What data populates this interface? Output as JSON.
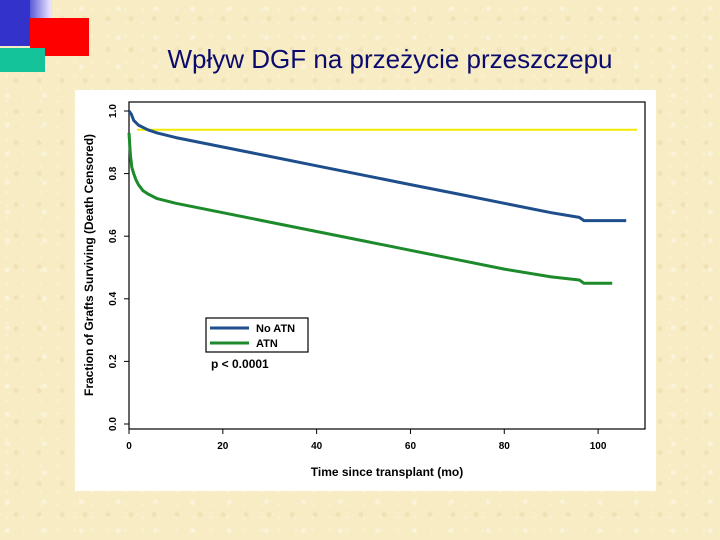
{
  "slide": {
    "title": "Wpływ DGF na przeżycie przeszczepu"
  },
  "colors": {
    "no_atn": "#1f4e8c",
    "atn": "#1d8a2b",
    "reference": "#f2ea00",
    "title": "#0b0b6e"
  },
  "chart_data": {
    "type": "line",
    "title": "",
    "xlabel": "Time since transplant (mo)",
    "ylabel": "Fraction of Grafts Surviving (Death Censored)",
    "xlim": [
      0,
      110
    ],
    "ylim": [
      0,
      1.0
    ],
    "x_ticks": [
      "0",
      "20",
      "40",
      "60",
      "80",
      "100"
    ],
    "y_ticks": [
      "0.0",
      "0.2",
      "0.4",
      "0.6",
      "0.8",
      "1.0"
    ],
    "reference_line": {
      "y": 0.94,
      "color": "#f2ea00"
    },
    "legend": {
      "position": "lower-left",
      "entries": [
        "No ATN",
        "ATN"
      ]
    },
    "annotation": "p < 0.0001",
    "series": [
      {
        "name": "No ATN",
        "color": "#1f4e8c",
        "x": [
          0,
          0.5,
          1,
          2,
          4,
          6,
          10,
          20,
          30,
          40,
          50,
          60,
          70,
          80,
          90,
          96,
          97,
          98,
          106
        ],
        "y": [
          1.0,
          0.99,
          0.97,
          0.955,
          0.94,
          0.93,
          0.915,
          0.885,
          0.855,
          0.825,
          0.795,
          0.765,
          0.735,
          0.705,
          0.675,
          0.66,
          0.65,
          0.65,
          0.65
        ]
      },
      {
        "name": "ATN",
        "color": "#1d8a2b",
        "x": [
          0,
          0.3,
          0.6,
          1,
          1.5,
          2,
          3,
          4,
          6,
          10,
          20,
          30,
          40,
          50,
          60,
          70,
          80,
          90,
          96,
          97,
          98,
          103
        ],
        "y": [
          0.93,
          0.86,
          0.82,
          0.8,
          0.78,
          0.765,
          0.745,
          0.735,
          0.72,
          0.705,
          0.675,
          0.645,
          0.615,
          0.585,
          0.555,
          0.525,
          0.495,
          0.47,
          0.46,
          0.45,
          0.45,
          0.45
        ]
      }
    ]
  }
}
